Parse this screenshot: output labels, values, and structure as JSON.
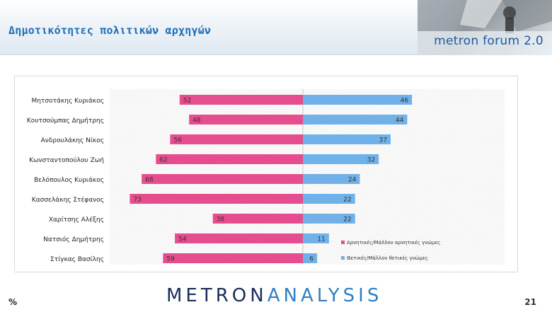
{
  "header": {
    "title": "Δημοτικότητες πολιτικών αρχηγών",
    "brand": "metron forum 2.0"
  },
  "footer": {
    "unit": "%",
    "logo_part1": "METRON",
    "logo_part2": "ANALYSIS",
    "page_number": "21"
  },
  "colors": {
    "negative": "#e64d8f",
    "positive": "#6fb1e8",
    "title": "#1f6fb5",
    "logo": "#1a2d5a"
  },
  "chart_data": {
    "type": "bar",
    "orientation": "horizontal-diverging",
    "categories": [
      "Μητσοτάκης Κυριάκος",
      "Κουτσούμπας Δημήτρης",
      "Ανδρουλάκης Νίκος",
      "Κωνσταντοπούλου Ζωή",
      "Βελόπουλος Κυριάκος",
      "Κασσελάκης Στέφανος",
      "Χαρίτσης Αλέξης",
      "Νατσιός Δημήτρης",
      "Στίγκας Βασίλης"
    ],
    "series": [
      {
        "name": "Αρνητικές/Μάλλον αρνητικές γνώμες",
        "color": "#e64d8f",
        "values": [
          52,
          48,
          56,
          62,
          68,
          73,
          38,
          54,
          59
        ]
      },
      {
        "name": "Θετικές/Μάλλον θετικές γνώμες",
        "color": "#6fb1e8",
        "values": [
          46,
          44,
          37,
          32,
          24,
          22,
          22,
          11,
          6
        ]
      }
    ],
    "xlim": [
      -80,
      80
    ],
    "grid": false,
    "legend_position": "bottom-right"
  }
}
